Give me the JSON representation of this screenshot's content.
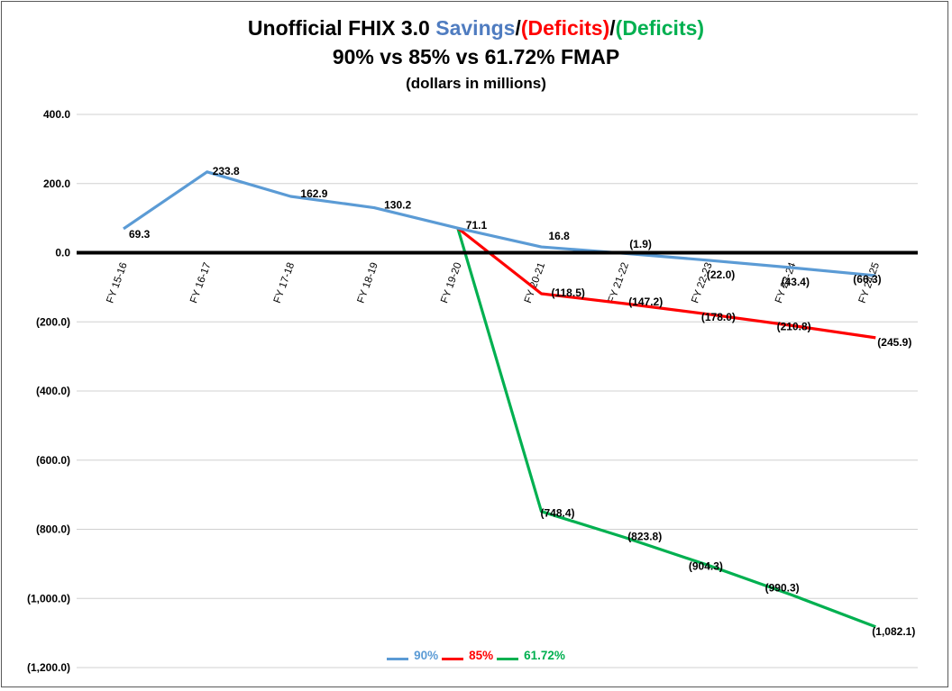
{
  "title": {
    "prefix": "Unofficial FHIX 3.0 ",
    "part1": "Savings",
    "sep1": "/",
    "part2": "(Deficits)",
    "sep2": "/",
    "part3": "(Deficits)",
    "line2": "90% vs 85% vs 61.72% FMAP",
    "line3": "(dollars in millions)"
  },
  "colors": {
    "series_90": "#5b9bd5",
    "series_85": "#ff0000",
    "series_6172": "#00b050",
    "savings_title": "#4f7cc0",
    "deficits_red": "#ff0000",
    "deficits_green": "#00b050",
    "zero_line": "#000000",
    "grid": "#d0d0d0"
  },
  "chart_data": {
    "type": "line",
    "categories": [
      "FY 15-16",
      "FY 16-17",
      "FY 17-18",
      "FY 18-19",
      "FY 19-20",
      "FY 20-21",
      "FY 21-22",
      "FY 22-23",
      "FY 23-24",
      "FY 24-25"
    ],
    "ylim": [
      -1200,
      400
    ],
    "yticks": [
      400,
      200,
      0,
      -200,
      -400,
      -600,
      -800,
      -1000,
      -1200
    ],
    "ytick_labels": [
      "400.0",
      "200.0",
      "0.0",
      "(200.0)",
      "(400.0)",
      "(600.0)",
      "(800.0)",
      "(1,000.0)",
      "(1,200.0)"
    ],
    "grid": true,
    "legend_position": "bottom",
    "series": [
      {
        "name": "90%",
        "color": "#5b9bd5",
        "values": [
          69.3,
          233.8,
          162.9,
          130.2,
          71.1,
          16.8,
          -1.9,
          -22.0,
          -43.4,
          -66.3
        ],
        "labels": [
          "69.3",
          "233.8",
          "162.9",
          "130.2",
          "71.1",
          "16.8",
          "(1.9)",
          "(22.0)",
          "(43.4)",
          "(66.3)"
        ]
      },
      {
        "name": "85%",
        "color": "#ff0000",
        "values": [
          null,
          null,
          null,
          null,
          71.1,
          -118.5,
          -147.2,
          -178.0,
          -210.8,
          -245.9
        ],
        "labels": [
          "",
          "",
          "",
          "",
          "",
          "(118.5)",
          "(147.2)",
          "(178.0)",
          "(210.8)",
          "(245.9)"
        ]
      },
      {
        "name": "61.72%",
        "color": "#00b050",
        "values": [
          null,
          null,
          null,
          null,
          71.1,
          -748.4,
          -823.8,
          -904.3,
          -990.3,
          -1082.1
        ],
        "labels": [
          "",
          "",
          "",
          "",
          "",
          "(748.4)",
          "(823.8)",
          "(904.3)",
          "(990.3)",
          "(1,082.1)"
        ]
      }
    ]
  }
}
